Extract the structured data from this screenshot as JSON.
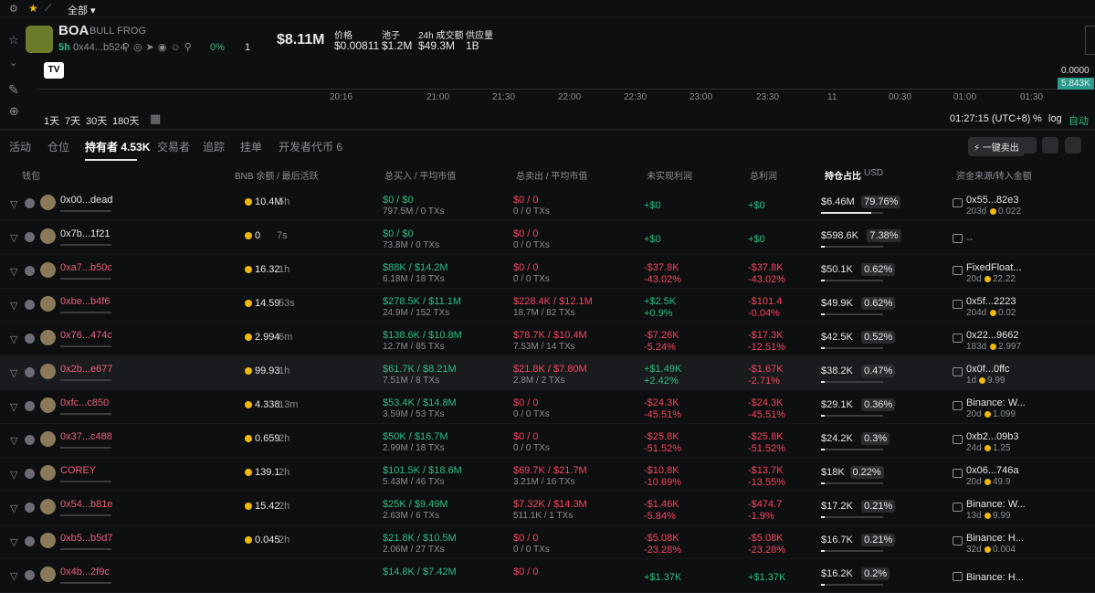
{
  "top": {
    "filter": "全部"
  },
  "token": {
    "symbol": "BOA",
    "name": "BULL FROG",
    "age": "5h",
    "address": "0x44...b524",
    "pct": "0%",
    "count": "1",
    "market_cap": "$8.11M",
    "stats": [
      {
        "label": "价格",
        "value": "$0.00811"
      },
      {
        "label": "池子",
        "value": "$1.2M"
      },
      {
        "label": "24h 成交额",
        "value": "$49.3M"
      },
      {
        "label": "供应量",
        "value": "1B"
      }
    ]
  },
  "chart": {
    "times": [
      "20:16",
      "21:00",
      "21:30",
      "22:00",
      "22:30",
      "23:00",
      "23:30",
      "11",
      "00:30",
      "01:00",
      "01:30"
    ],
    "price_label": "0.0000",
    "volume_label": "5.843K",
    "ranges": [
      "1天",
      "7天",
      "30天",
      "180天"
    ],
    "clock": "01:27:15 (UTC+8)",
    "options": [
      "%",
      "log",
      "自动"
    ]
  },
  "tabs": [
    "活动",
    "仓位",
    "持有者 4.53K",
    "交易者",
    "追踪",
    "挂单",
    "开发者代币 6"
  ],
  "sell_all": "一键卖出",
  "columns": [
    "钱包",
    "BNB 余额 / 最后活跃",
    "总买入 / 平均市值",
    "总卖出 / 平均市值",
    "未实现利润",
    "总利润",
    "持仓占比",
    "USD",
    "资金来源/转入金额"
  ],
  "rows": [
    {
      "wallet": "0x00...dead",
      "balance": "10.4M",
      "active": "5h",
      "buy": "$0 / $0",
      "buy_sub": "797.5M / 0 TXs",
      "sell": "$0 / 0",
      "sell_sub": "0 / 0 TXs",
      "unrealized": "+$0",
      "profit": "+$0",
      "holding_usd": "$6.46M",
      "holding_pct": "79.76%",
      "source": "0x55...82e3",
      "source_age": "203d",
      "source_amount": "0.022"
    },
    {
      "wallet": "0x7b...1f21",
      "balance": "0",
      "active": "7s",
      "buy": "$0 / $0",
      "buy_sub": "73.8M / 0 TXs",
      "sell": "$0 / 0",
      "sell_sub": "0 / 0 TXs",
      "unrealized": "+$0",
      "profit": "+$0",
      "holding_usd": "$598.6K",
      "holding_pct": "7.38%",
      "source": "--"
    },
    {
      "wallet": "0xa7...b50c",
      "balance": "16.32",
      "active": "1h",
      "buy": "$88K / $14.2M",
      "buy_sub": "6.18M / 18 TXs",
      "sell": "$0 / 0",
      "sell_sub": "0 / 0 TXs",
      "unrealized": "-$37.8K",
      "unrealized_pct": "-43.02%",
      "profit": "-$37.8K",
      "profit_pct": "-43.02%",
      "holding_usd": "$50.1K",
      "holding_pct": "0.62%",
      "source": "FixedFloat...",
      "source_age": "20d",
      "source_amount": "22.22"
    },
    {
      "wallet": "0xbe...b4f6",
      "balance": "14.59",
      "active": "53s",
      "buy": "$278.5K / $11.1M",
      "buy_sub": "24.9M / 152 TXs",
      "sell": "$228.4K / $12.1M",
      "sell_sub": "18.7M / 82 TXs",
      "unrealized": "+$2.5K",
      "unrealized_pct": "+0.9%",
      "profit": "-$101.4",
      "profit_pct": "-0.04%",
      "holding_usd": "$49.9K",
      "holding_pct": "0.62%",
      "source": "0x5f...2223",
      "source_age": "204d",
      "source_amount": "0.02"
    },
    {
      "wallet": "0x76...474c",
      "balance": "2.994",
      "active": "6m",
      "buy": "$138.6K / $10.8M",
      "buy_sub": "12.7M / 85 TXs",
      "sell": "$78.7K / $10.4M",
      "sell_sub": "7.53M / 14 TXs",
      "unrealized": "-$7.26K",
      "unrealized_pct": "-5.24%",
      "profit": "-$17.3K",
      "profit_pct": "-12.51%",
      "holding_usd": "$42.5K",
      "holding_pct": "0.52%",
      "source": "0x22...9662",
      "source_age": "183d",
      "source_amount": "2.997"
    },
    {
      "wallet": "0x2b...e677",
      "balance": "99.93",
      "active": "1h",
      "buy": "$61.7K / $8.21M",
      "buy_sub": "7.51M / 8 TXs",
      "sell": "$21.8K / $7.80M",
      "sell_sub": "2.8M / 2 TXs",
      "unrealized": "+$1.49K",
      "unrealized_pct": "+2.42%",
      "profit": "-$1.67K",
      "profit_pct": "-2.71%",
      "holding_usd": "$38.2K",
      "holding_pct": "0.47%",
      "source": "0x0f...0ffc",
      "source_age": "1d",
      "source_amount": "9.99"
    },
    {
      "wallet": "0xfc...c850",
      "balance": "4.338",
      "active": "13m",
      "buy": "$53.4K / $14.8M",
      "buy_sub": "3.59M / 53 TXs",
      "sell": "$0 / 0",
      "sell_sub": "0 / 0 TXs",
      "unrealized": "-$24.3K",
      "unrealized_pct": "-45.51%",
      "profit": "-$24.3K",
      "profit_pct": "-45.51%",
      "holding_usd": "$29.1K",
      "holding_pct": "0.36%",
      "source": "Binance: W...",
      "source_age": "20d",
      "source_amount": "1.099"
    },
    {
      "wallet": "0x37...c488",
      "balance": "0.659",
      "active": "2h",
      "buy": "$50K / $16.7M",
      "buy_sub": "2.99M / 18 TXs",
      "sell": "$0 / 0",
      "sell_sub": "0 / 0 TXs",
      "unrealized": "-$25.8K",
      "unrealized_pct": "-51.52%",
      "profit": "-$25.8K",
      "profit_pct": "-51.52%",
      "holding_usd": "$24.2K",
      "holding_pct": "0.3%",
      "source": "0xb2...09b3",
      "source_age": "24d",
      "source_amount": "1.25"
    },
    {
      "wallet": "COREY",
      "balance": "139.1",
      "active": "2h",
      "buy": "$101.5K / $18.6M",
      "buy_sub": "5.43M / 46 TXs",
      "sell": "$69.7K / $21.7M",
      "sell_sub": "3.21M / 16 TXs",
      "unrealized": "-$10.8K",
      "unrealized_pct": "-10.69%",
      "profit": "-$13.7K",
      "profit_pct": "-13.55%",
      "holding_usd": "$18K",
      "holding_pct": "0.22%",
      "source": "0x06...746a",
      "source_age": "20d",
      "source_amount": "49.9"
    },
    {
      "wallet": "0x54...b81e",
      "balance": "15.42",
      "active": "2h",
      "buy": "$25K / $9.49M",
      "buy_sub": "2.63M / 6 TXs",
      "sell": "$7.32K / $14.3M",
      "sell_sub": "511.1K / 1 TXs",
      "unrealized": "-$1.46K",
      "unrealized_pct": "-5.84%",
      "profit": "-$474.7",
      "profit_pct": "-1.9%",
      "holding_usd": "$17.2K",
      "holding_pct": "0.21%",
      "source": "Binance: W...",
      "source_age": "13d",
      "source_amount": "9.99"
    },
    {
      "wallet": "0xb5...b5d7",
      "balance": "0.045",
      "active": "2h",
      "buy": "$21.8K / $10.5M",
      "buy_sub": "2.06M / 27 TXs",
      "sell": "$0 / 0",
      "sell_sub": "0 / 0 TXs",
      "unrealized": "-$5.08K",
      "unrealized_pct": "-23.28%",
      "profit": "-$5.08K",
      "profit_pct": "-23.28%",
      "holding_usd": "$16.7K",
      "holding_pct": "0.21%",
      "source": "Binance: H...",
      "source_age": "32d",
      "source_amount": "0.004"
    },
    {
      "wallet": "0x4b...2f9c",
      "buy": "$14.8K / $7.42M",
      "sell": "$0 / 0",
      "unrealized": "+$1.37K",
      "profit": "+$1.37K",
      "holding_usd": "$16.2K",
      "holding_pct": "0.2%",
      "source": "Binance: H..."
    }
  ]
}
